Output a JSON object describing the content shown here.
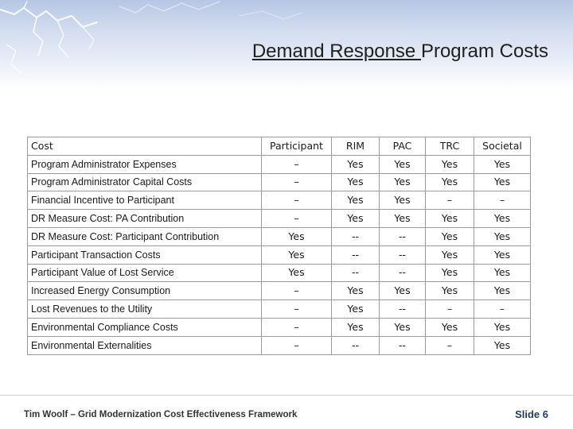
{
  "slide": {
    "title_underlined": "Demand Response ",
    "title_rest": "Program Costs",
    "footer_text": "Tim Woolf – Grid Modernization Cost Effectiveness Framework",
    "slide_number": "Slide 6"
  },
  "table": {
    "headers": [
      "Cost",
      "Participant",
      "RIM",
      "PAC",
      "TRC",
      "Societal"
    ],
    "rows": [
      [
        "Program Administrator Expenses",
        "–",
        "Yes",
        "Yes",
        "Yes",
        "Yes"
      ],
      [
        "Program Administrator Capital Costs",
        "–",
        "Yes",
        "Yes",
        "Yes",
        "Yes"
      ],
      [
        "Financial Incentive to Participant",
        "–",
        "Yes",
        "Yes",
        "–",
        "–"
      ],
      [
        "DR Measure Cost: PA Contribution",
        "–",
        "Yes",
        "Yes",
        "Yes",
        "Yes"
      ],
      [
        "DR Measure Cost: Participant Contribution",
        "Yes",
        "--",
        "--",
        "Yes",
        "Yes"
      ],
      [
        "Participant Transaction Costs",
        "Yes",
        "--",
        "--",
        "Yes",
        "Yes"
      ],
      [
        "Participant Value of Lost Service",
        "Yes",
        "--",
        "--",
        "Yes",
        "Yes"
      ],
      [
        "Increased Energy Consumption",
        "–",
        "Yes",
        "Yes",
        "Yes",
        "Yes"
      ],
      [
        "Lost Revenues to the Utility",
        "–",
        "Yes",
        "--",
        "–",
        "–"
      ],
      [
        "Environmental Compliance Costs",
        "–",
        "Yes",
        "Yes",
        "Yes",
        "Yes"
      ],
      [
        "Environmental Externalities",
        "–",
        "--",
        "--",
        "–",
        "Yes"
      ]
    ]
  },
  "colors": {
    "banner_top": "#b6c6e4",
    "footer_number": "#1f3a5f"
  }
}
